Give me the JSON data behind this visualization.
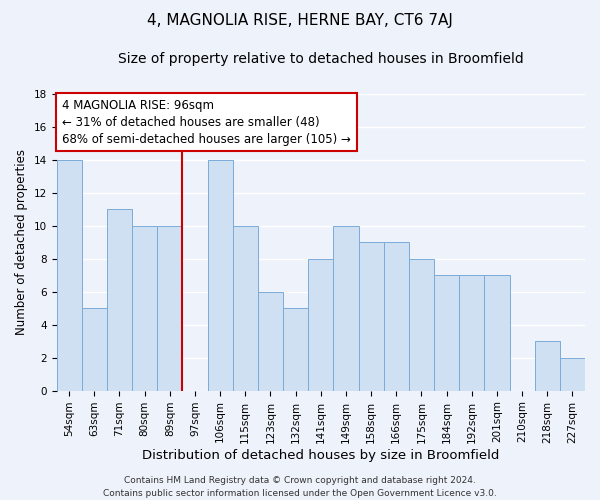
{
  "title": "4, MAGNOLIA RISE, HERNE BAY, CT6 7AJ",
  "subtitle": "Size of property relative to detached houses in Broomfield",
  "xlabel": "Distribution of detached houses by size in Broomfield",
  "ylabel": "Number of detached properties",
  "bar_labels": [
    "54sqm",
    "63sqm",
    "71sqm",
    "80sqm",
    "89sqm",
    "97sqm",
    "106sqm",
    "115sqm",
    "123sqm",
    "132sqm",
    "141sqm",
    "149sqm",
    "158sqm",
    "166sqm",
    "175sqm",
    "184sqm",
    "192sqm",
    "201sqm",
    "210sqm",
    "218sqm",
    "227sqm"
  ],
  "bar_values": [
    14,
    5,
    11,
    10,
    10,
    0,
    14,
    10,
    6,
    5,
    8,
    10,
    9,
    9,
    8,
    7,
    7,
    7,
    0,
    3,
    2
  ],
  "bar_color": "#cfe0f3",
  "bar_edge_color": "#7aabda",
  "background_color": "#eef2fa",
  "grid_color": "#ffffff",
  "vline_index": 5,
  "vline_color": "#cc0000",
  "annotation_lines": [
    "4 MAGNOLIA RISE: 96sqm",
    "← 31% of detached houses are smaller (48)",
    "68% of semi-detached houses are larger (105) →"
  ],
  "annotation_box_facecolor": "white",
  "annotation_box_edgecolor": "#cc0000",
  "ylim": [
    0,
    18
  ],
  "yticks": [
    0,
    2,
    4,
    6,
    8,
    10,
    12,
    14,
    16,
    18
  ],
  "footer_line1": "Contains HM Land Registry data © Crown copyright and database right 2024.",
  "footer_line2": "Contains public sector information licensed under the Open Government Licence v3.0.",
  "title_fontsize": 11,
  "subtitle_fontsize": 10,
  "xlabel_fontsize": 9.5,
  "ylabel_fontsize": 8.5,
  "tick_fontsize": 7.5,
  "annotation_fontsize": 8.5,
  "footer_fontsize": 6.5
}
